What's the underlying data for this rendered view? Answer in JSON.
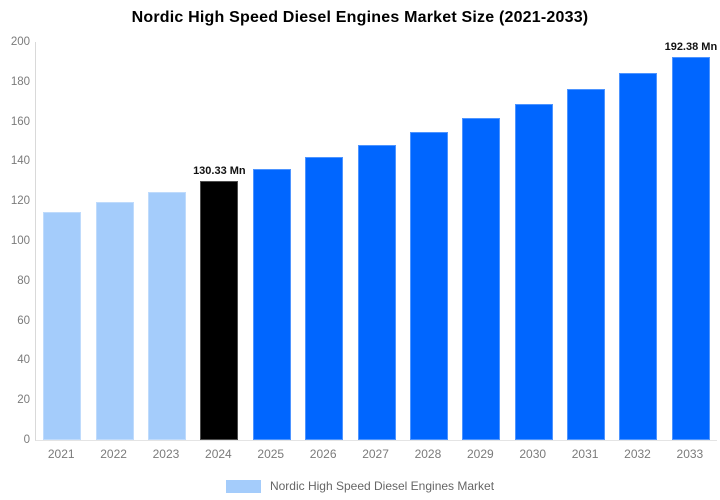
{
  "title": "Nordic High Speed Diesel Engines Market Size (2021-2033)",
  "legend": {
    "label": "Nordic High Speed Diesel Engines Market",
    "swatch_color": "#a4ccfb"
  },
  "colors": {
    "historical_bar": "#a4ccfb",
    "base_year_bar": "#000000",
    "forecast_bar": "#0066ff",
    "axis_line": "#d9d9d9",
    "tick_text": "#7b7b7b",
    "title_text": "#000000",
    "data_label_text": "#111111"
  },
  "chart_data": {
    "type": "bar",
    "title": "Nordic High Speed Diesel Engines Market Size (2021-2033)",
    "xlabel": "",
    "ylabel": "",
    "categories": [
      "2021",
      "2022",
      "2023",
      "2024",
      "2025",
      "2026",
      "2027",
      "2028",
      "2029",
      "2030",
      "2031",
      "2032",
      "2033"
    ],
    "values": [
      114.4,
      119.5,
      124.8,
      130.33,
      136.1,
      142.1,
      148.4,
      155.0,
      161.8,
      169.0,
      176.4,
      184.2,
      192.38
    ],
    "bar_colors": [
      "#a4ccfb",
      "#a4ccfb",
      "#a4ccfb",
      "#000000",
      "#0066ff",
      "#0066ff",
      "#0066ff",
      "#0066ff",
      "#0066ff",
      "#0066ff",
      "#0066ff",
      "#0066ff",
      "#0066ff"
    ],
    "data_labels": {
      "2024": "130.33 Mn",
      "2033": "192.38 Mn"
    },
    "unit": "Mn",
    "ylim": [
      0,
      200
    ],
    "yticks": [
      0,
      20,
      40,
      60,
      80,
      100,
      120,
      140,
      160,
      180,
      200
    ],
    "grid": false,
    "legend_position": "bottom",
    "legend_entries": [
      "Nordic High Speed Diesel Engines Market"
    ]
  }
}
